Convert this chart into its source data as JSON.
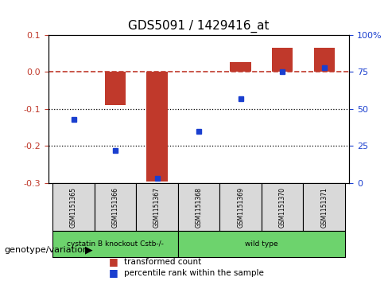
{
  "title": "GDS5091 / 1429416_at",
  "categories": [
    "GSM1151365",
    "GSM1151366",
    "GSM1151367",
    "GSM1151368",
    "GSM1151369",
    "GSM1151370",
    "GSM1151371"
  ],
  "transformed_count": [
    0.001,
    -0.09,
    -0.295,
    0.001,
    0.025,
    0.065,
    0.065
  ],
  "percentile_rank": [
    43,
    22,
    3,
    35,
    57,
    75,
    78
  ],
  "bar_color": "#c0392b",
  "dot_color": "#1a3fcf",
  "ylim_left": [
    -0.3,
    0.1
  ],
  "ylim_right": [
    0,
    100
  ],
  "yticks_left": [
    -0.3,
    -0.2,
    -0.1,
    0.0,
    0.1
  ],
  "yticks_right": [
    0,
    25,
    50,
    75,
    100
  ],
  "ytick_labels_right": [
    "0",
    "25",
    "50",
    "75",
    "100%"
  ],
  "hline_y": 0.0,
  "dotted_lines": [
    -0.1,
    -0.2
  ],
  "group_labels": [
    "cystatin B knockout Cstb-/-",
    "wild type"
  ],
  "group_ranges": [
    3,
    4
  ],
  "group_colors": [
    "#7dcc7d",
    "#7dcc7d"
  ],
  "group_font_size": 8,
  "legend_items": [
    "transformed count",
    "percentile rank within the sample"
  ],
  "legend_colors": [
    "#c0392b",
    "#1a3fcf"
  ],
  "genotype_label": "genotype/variation",
  "bar_width": 0.5,
  "background_color": "#ffffff"
}
